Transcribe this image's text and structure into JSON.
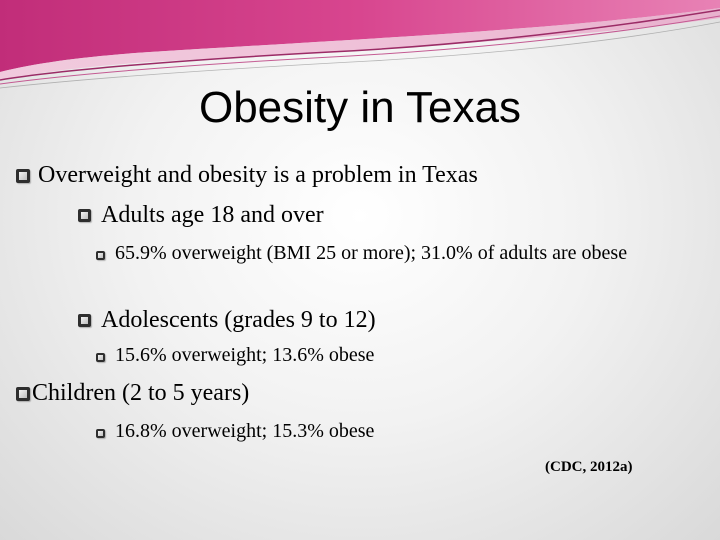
{
  "slide": {
    "title": "Obesity in Texas",
    "bullets": [
      {
        "level": 1,
        "text": "Overweight and obesity is a problem in Texas"
      },
      {
        "level": 2,
        "text": "Adults age 18 and over"
      },
      {
        "level": 3,
        "text": "65.9% overweight (BMI 25 or more); 31.0% of adults are obese"
      },
      {
        "level": 2,
        "text": "Adolescents (grades 9 to 12)"
      },
      {
        "level": 3,
        "text": "15.6% overweight; 13.6% obese"
      },
      {
        "level": 1,
        "text": "Children (2 to 5 years)"
      },
      {
        "level": 3,
        "text": "16.8% overweight; 15.3% obese"
      }
    ],
    "citation": "(CDC, 2012a)"
  },
  "colors": {
    "accent_magenta": "#d0357e",
    "accent_light_pink": "#e58fba",
    "bullet_box": "#2e2e2e"
  }
}
